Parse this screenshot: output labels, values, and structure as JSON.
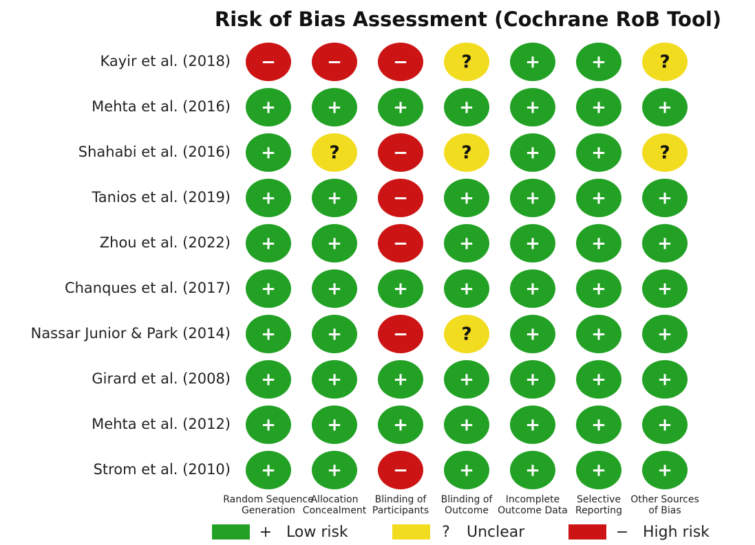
{
  "title": "Risk of Bias Assessment (Cochrane RoB Tool)",
  "studies": [
    "Kayir et al. (2018)",
    "Mehta et al. (2016)",
    "Shahabi et al. (2016)",
    "Tanios et al. (2019)",
    "Zhou et al. (2022)",
    "Chanques et al. (2017)",
    "Nassar Junior & Park (2014)",
    "Girard et al. (2008)",
    "Mehta et al. (2012)",
    "Strom et al. (2010)"
  ],
  "domains": [
    [
      "Random Sequence",
      "Generation"
    ],
    [
      "Allocation",
      "Concealment"
    ],
    [
      "Blinding of",
      "Participants"
    ],
    [
      "Blinding of",
      "Outcome"
    ],
    [
      "Incomplete",
      "Outcome Data"
    ],
    [
      "Selective",
      "Reporting"
    ],
    [
      "Other Sources",
      "of Bias"
    ]
  ],
  "judgments": [
    [
      "−",
      "−",
      "−",
      "?",
      "+",
      "+",
      "?"
    ],
    [
      "+",
      "+",
      "+",
      "+",
      "+",
      "+",
      "+"
    ],
    [
      "+",
      "?",
      "−",
      "?",
      "+",
      "+",
      "?"
    ],
    [
      "+",
      "+",
      "−",
      "+",
      "+",
      "+",
      "+"
    ],
    [
      "+",
      "+",
      "−",
      "+",
      "+",
      "+",
      "+"
    ],
    [
      "+",
      "+",
      "+",
      "+",
      "+",
      "+",
      "+"
    ],
    [
      "+",
      "+",
      "−",
      "?",
      "+",
      "+",
      "+"
    ],
    [
      "+",
      "+",
      "+",
      "+",
      "+",
      "+",
      "+"
    ],
    [
      "+",
      "+",
      "+",
      "+",
      "+",
      "+",
      "+"
    ],
    [
      "+",
      "+",
      "−",
      "+",
      "+",
      "+",
      "+"
    ]
  ],
  "legend": [
    {
      "symbol": "+",
      "label": "Low risk",
      "color": "#22a125",
      "symbol_color": "#ffffff"
    },
    {
      "symbol": "?",
      "label": "Unclear",
      "color": "#f2dc1f",
      "symbol_color": "#111111"
    },
    {
      "symbol": "−",
      "label": "High risk",
      "color": "#cc1414",
      "symbol_color": "#ffffff"
    }
  ]
}
